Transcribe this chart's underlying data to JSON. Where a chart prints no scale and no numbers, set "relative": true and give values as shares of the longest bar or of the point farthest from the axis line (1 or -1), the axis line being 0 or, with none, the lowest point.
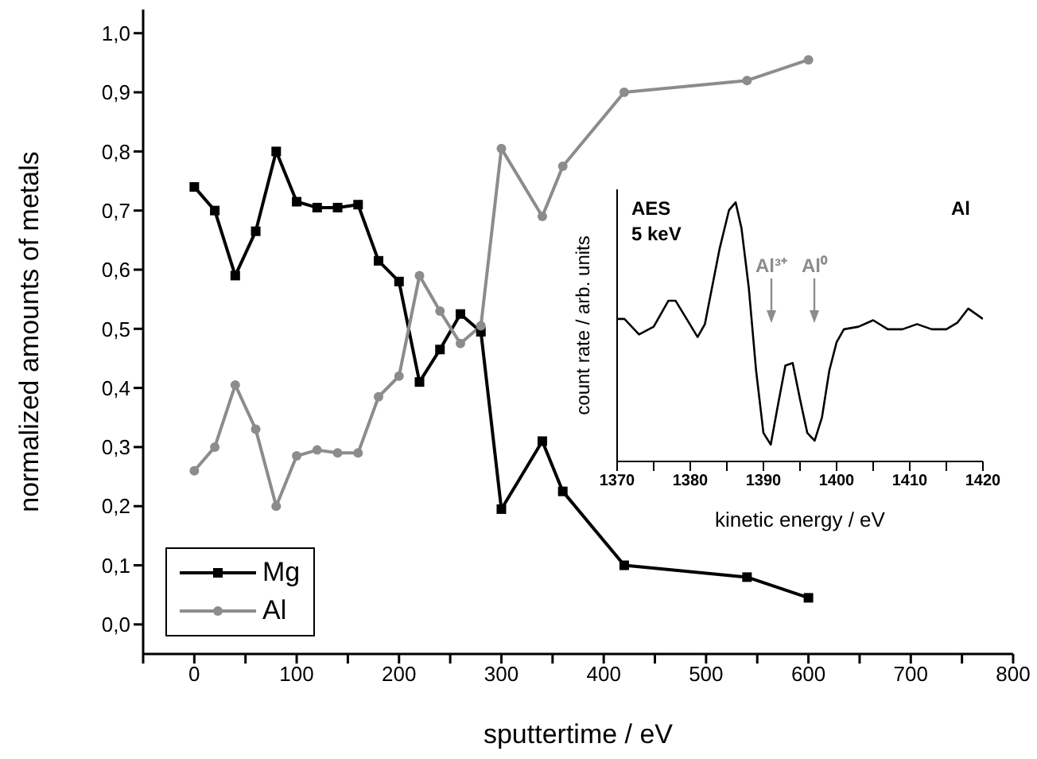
{
  "chart_data": [
    {
      "type": "line",
      "xlabel": "sputtertime / eV",
      "ylabel": "normalized amounts of metals",
      "xlim": [
        -50,
        800
      ],
      "xticks": [
        {
          "value": -50,
          "label": null
        },
        0,
        {
          "value": 50,
          "label": null
        },
        100,
        {
          "value": 150,
          "label": null
        },
        200,
        {
          "value": 250,
          "label": null
        },
        300,
        {
          "value": 350,
          "label": null
        },
        400,
        {
          "value": 450,
          "label": null
        },
        500,
        {
          "value": 550,
          "label": null
        },
        600,
        {
          "value": 650,
          "label": null
        },
        700,
        {
          "value": 750,
          "label": null
        },
        800
      ],
      "ylim": [
        -0.05,
        1.04
      ],
      "yticks": [
        {
          "value": 0,
          "label": "0,0"
        },
        {
          "value": 0.1,
          "label": "0,1"
        },
        {
          "value": 0.2,
          "label": "0,2"
        },
        {
          "value": 0.3,
          "label": "0,3"
        },
        {
          "value": 0.4,
          "label": "0,4"
        },
        {
          "value": 0.5,
          "label": "0,5"
        },
        {
          "value": 0.6,
          "label": "0,6"
        },
        {
          "value": 0.7,
          "label": "0,7"
        },
        {
          "value": 0.8,
          "label": "0,8"
        },
        {
          "value": 0.9,
          "label": "0,9"
        },
        {
          "value": 1,
          "label": "1,0"
        }
      ],
      "legend": "bottom left",
      "x": [
        0,
        20,
        40,
        60,
        80,
        100,
        120,
        140,
        160,
        180,
        200,
        220,
        240,
        260,
        280,
        300,
        340,
        360,
        420,
        540,
        600
      ],
      "series": [
        {
          "name": "Mg",
          "color": "#000000",
          "marker": "square",
          "values": [
            0.74,
            0.7,
            0.59,
            0.665,
            0.8,
            0.715,
            0.705,
            0.705,
            0.71,
            0.615,
            0.58,
            0.41,
            0.465,
            0.525,
            0.495,
            0.195,
            0.31,
            0.225,
            0.1,
            0.08,
            0.045
          ]
        },
        {
          "name": "Al",
          "color": "#8c8c8c",
          "marker": "circle",
          "values": [
            0.26,
            0.3,
            0.405,
            0.33,
            0.2,
            0.285,
            0.295,
            0.29,
            0.29,
            0.385,
            0.42,
            0.59,
            0.53,
            0.475,
            0.505,
            0.805,
            0.69,
            0.775,
            0.9,
            0.92,
            0.955
          ]
        }
      ]
    },
    {
      "type": "line",
      "xlabel": "kinetic energy / eV",
      "ylabel": "count rate / arb. units",
      "relative": true,
      "xlim": [
        1370,
        1420
      ],
      "xticks": [
        1370,
        {
          "value": 1375,
          "label": null
        },
        1380,
        {
          "value": 1385,
          "label": null
        },
        1390,
        {
          "value": 1395,
          "label": null
        },
        1400,
        {
          "value": 1405,
          "label": null
        },
        1410,
        {
          "value": 1415,
          "label": null
        },
        1420
      ],
      "marker": "none",
      "annotations": [
        "AES",
        "5 keV",
        "Al",
        "Al³⁺",
        "Al⁰"
      ],
      "series": [
        {
          "color": "#000000",
          "x": [
            1370,
            1371,
            1373,
            1375,
            1377,
            1378,
            1379.5,
            1381,
            1382,
            1384,
            1385.3,
            1386.2,
            1387,
            1388,
            1389,
            1390,
            1391,
            1392,
            1393,
            1394,
            1395,
            1396,
            1397,
            1398,
            1399,
            1400,
            1401,
            1403,
            1405,
            1407,
            1409,
            1411,
            1413,
            1415,
            1416.5,
            1418,
            1419,
            1420
          ],
          "values": [
            0.55,
            0.55,
            0.49,
            0.52,
            0.62,
            0.62,
            0.55,
            0.48,
            0.53,
            0.82,
            0.97,
            1.0,
            0.9,
            0.67,
            0.35,
            0.11,
            0.065,
            0.22,
            0.37,
            0.38,
            0.24,
            0.11,
            0.08,
            0.17,
            0.35,
            0.46,
            0.51,
            0.52,
            0.545,
            0.51,
            0.51,
            0.53,
            0.51,
            0.51,
            0.535,
            0.59,
            0.57,
            0.55
          ]
        }
      ]
    }
  ]
}
